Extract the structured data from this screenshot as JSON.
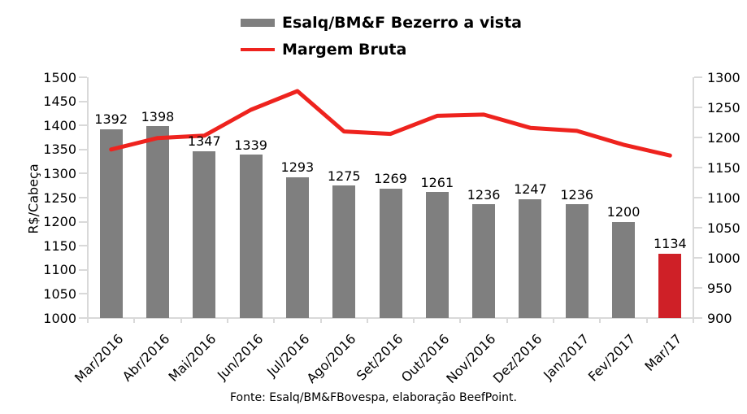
{
  "legend": {
    "items": [
      {
        "label": "Esalq/BM&F Bezerro a vista",
        "swatch": "bar",
        "color": "#7f7f7f"
      },
      {
        "label": "Margem Bruta",
        "swatch": "line",
        "color": "#ee231e"
      }
    ]
  },
  "source": "Fonte: Esalq/BM&FBovespa, elaboração BeefPoint.",
  "chart_data": {
    "type": "bar",
    "subtype": "combo-bar-line",
    "title": "",
    "categories": [
      "Mar/2016",
      "Abr/2016",
      "Mai/2016",
      "Jun/2016",
      "Jul/2016",
      "Ago/2016",
      "Set/2016",
      "Out/2016",
      "Nov/2016",
      "Dez/2016",
      "Jan/2017",
      "Fev/2017",
      "Mar/17"
    ],
    "series": [
      {
        "name": "Esalq/BM&F Bezerro a vista",
        "type": "bar",
        "axis": "left",
        "values": [
          1392,
          1398,
          1347,
          1339,
          1293,
          1275,
          1269,
          1261,
          1236,
          1247,
          1236,
          1200,
          1134
        ],
        "data_labels": true,
        "color_default": "#7f7f7f",
        "color_highlight": "#cf2027",
        "highlight_index": 12
      },
      {
        "name": "Margem Bruta",
        "type": "line",
        "axis": "right",
        "estimated": true,
        "values": [
          1180,
          1199,
          1203,
          1246,
          1277,
          1210,
          1206,
          1236,
          1238,
          1216,
          1211,
          1188,
          1170
        ],
        "color": "#ee231e"
      }
    ],
    "left_axis": {
      "title": "R$/Cabeça",
      "min": 1000,
      "max": 1500,
      "step": 50
    },
    "right_axis": {
      "title": "",
      "min": 900,
      "max": 1300,
      "step": 50
    },
    "grid": false,
    "legend_position": "top-center",
    "axis_line_color": "#d9d9d9",
    "x_label_rotation_deg": -45
  }
}
